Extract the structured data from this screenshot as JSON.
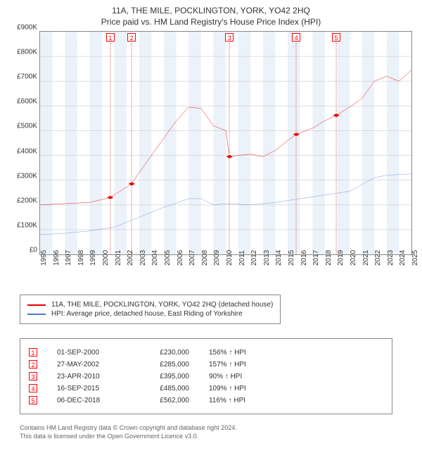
{
  "title_main": "11A, THE MILE, POCKLINGTON, YORK, YO42 2HQ",
  "title_sub": "Price paid vs. HM Land Registry's House Price Index (HPI)",
  "chart": {
    "type": "line",
    "background_color": "#ffffff",
    "band_color": "#ecf2fa",
    "border_color": "#888888",
    "ylim": [
      0,
      900
    ],
    "ytick_step": 100,
    "ytick_prefix": "£",
    "ytick_suffix": "K",
    "yticks": [
      "£0",
      "£100K",
      "£200K",
      "£300K",
      "£400K",
      "£500K",
      "£600K",
      "£700K",
      "£800K",
      "£900K"
    ],
    "xlim": [
      1995,
      2025
    ],
    "xticks": [
      1995,
      1996,
      1997,
      1998,
      1999,
      2000,
      2001,
      2002,
      2003,
      2004,
      2005,
      2006,
      2007,
      2008,
      2009,
      2010,
      2011,
      2012,
      2013,
      2014,
      2015,
      2016,
      2017,
      2018,
      2019,
      2020,
      2021,
      2022,
      2023,
      2024,
      2025
    ],
    "series": {
      "price_paid": {
        "color": "#e60000",
        "line_width": 1.5,
        "points": [
          [
            1995,
            200
          ],
          [
            1997,
            205
          ],
          [
            1999,
            210
          ],
          [
            2000.67,
            230
          ],
          [
            2002.4,
            285
          ],
          [
            2003,
            330
          ],
          [
            2004,
            400
          ],
          [
            2005,
            470
          ],
          [
            2006,
            540
          ],
          [
            2007,
            595
          ],
          [
            2008,
            590
          ],
          [
            2009,
            520
          ],
          [
            2010,
            500
          ],
          [
            2010.3,
            395
          ],
          [
            2011,
            400
          ],
          [
            2012,
            405
          ],
          [
            2013,
            395
          ],
          [
            2014,
            420
          ],
          [
            2015,
            460
          ],
          [
            2015.7,
            485
          ],
          [
            2017,
            510
          ],
          [
            2018,
            540
          ],
          [
            2018.93,
            562
          ],
          [
            2020,
            595
          ],
          [
            2021,
            630
          ],
          [
            2022,
            700
          ],
          [
            2023,
            720
          ],
          [
            2024,
            700
          ],
          [
            2025,
            745
          ]
        ],
        "sale_markers": [
          {
            "x": 2000.67,
            "y": 230
          },
          {
            "x": 2002.4,
            "y": 285
          },
          {
            "x": 2010.3,
            "y": 395
          },
          {
            "x": 2015.7,
            "y": 485
          },
          {
            "x": 2018.93,
            "y": 562
          }
        ]
      },
      "hpi": {
        "color": "#4a7bc8",
        "line_width": 1.2,
        "points": [
          [
            1995,
            80
          ],
          [
            1997,
            85
          ],
          [
            1999,
            95
          ],
          [
            2001,
            110
          ],
          [
            2003,
            150
          ],
          [
            2005,
            190
          ],
          [
            2007,
            225
          ],
          [
            2008,
            225
          ],
          [
            2009,
            200
          ],
          [
            2010,
            205
          ],
          [
            2012,
            200
          ],
          [
            2014,
            210
          ],
          [
            2016,
            225
          ],
          [
            2018,
            240
          ],
          [
            2020,
            255
          ],
          [
            2022,
            310
          ],
          [
            2023,
            320
          ],
          [
            2025,
            325
          ]
        ]
      }
    }
  },
  "legend": [
    {
      "color": "#e60000",
      "label": "11A, THE MILE, POCKLINGTON, YORK, YO42 2HQ (detached house)"
    },
    {
      "color": "#4a7bc8",
      "label": "HPI: Average price, detached house, East Riding of Yorkshire"
    }
  ],
  "sales": [
    {
      "n": "1",
      "date": "01-SEP-2000",
      "price": "£230,000",
      "hpi": "156% ↑ HPI"
    },
    {
      "n": "2",
      "date": "27-MAY-2002",
      "price": "£285,000",
      "hpi": "157% ↑ HPI"
    },
    {
      "n": "3",
      "date": "23-APR-2010",
      "price": "£395,000",
      "hpi": "90% ↑ HPI"
    },
    {
      "n": "4",
      "date": "16-SEP-2015",
      "price": "£485,000",
      "hpi": "109% ↑ HPI"
    },
    {
      "n": "5",
      "date": "06-DEC-2018",
      "price": "£562,000",
      "hpi": "116% ↑ HPI"
    }
  ],
  "sale_marker_x": [
    2000.67,
    2002.4,
    2010.3,
    2015.7,
    2018.93
  ],
  "footer_line1": "Contains HM Land Registry data © Crown copyright and database right 2024.",
  "footer_line2": "This data is licensed under the Open Government Licence v3.0."
}
